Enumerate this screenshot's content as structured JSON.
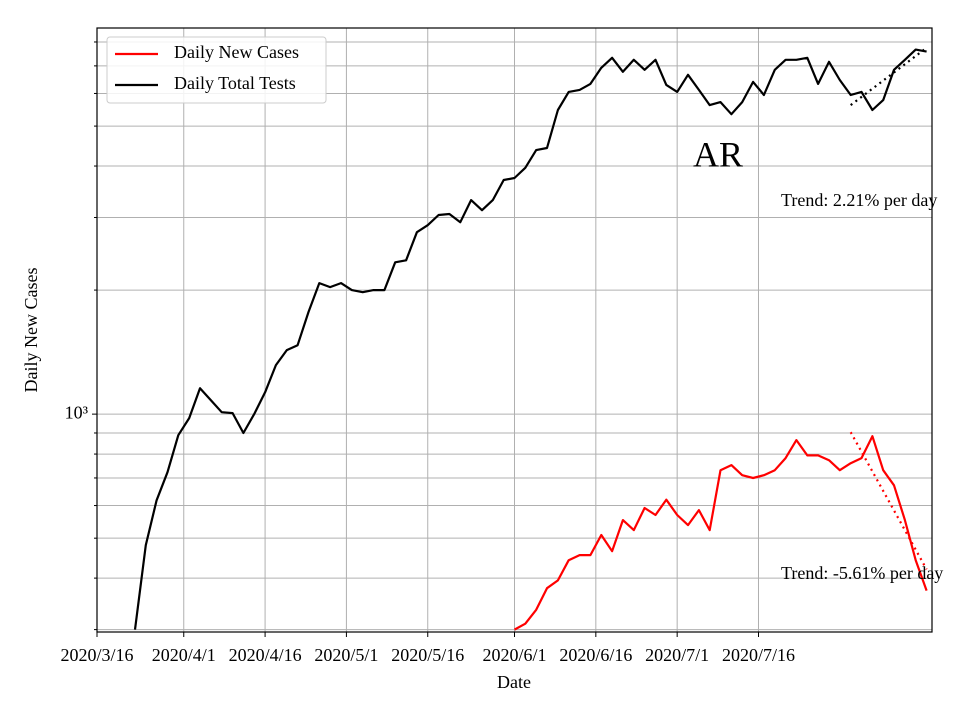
{
  "chart_data": {
    "type": "line",
    "log_y": true,
    "grid": true,
    "legend": "upper left",
    "ylabel": "Daily New Cases",
    "xlabel": "Date",
    "annotation": "AR",
    "xlim": [
      "2020/3/16",
      "2020/8/17"
    ],
    "xticks": [
      "2020/3/16",
      "2020/4/1",
      "2020/4/16",
      "2020/5/1",
      "2020/5/16",
      "2020/6/1",
      "2020/6/16",
      "2020/7/1",
      "2020/7/16"
    ],
    "ylim": [
      296,
      8650
    ],
    "yticks": [
      {
        "value": 1000,
        "label": "10³"
      }
    ],
    "yminorticks": [
      300,
      400,
      500,
      600,
      700,
      800,
      900,
      2000,
      3000,
      4000,
      5000,
      6000,
      7000,
      8000
    ],
    "x": [
      "2020/3/23",
      "2020/3/25",
      "2020/3/27",
      "2020/3/29",
      "2020/3/31",
      "2020/4/2",
      "2020/4/4",
      "2020/4/6",
      "2020/4/8",
      "2020/4/10",
      "2020/4/12",
      "2020/4/14",
      "2020/4/16",
      "2020/4/18",
      "2020/4/20",
      "2020/4/22",
      "2020/4/24",
      "2020/4/26",
      "2020/4/28",
      "2020/4/30",
      "2020/5/2",
      "2020/5/4",
      "2020/5/6",
      "2020/5/8",
      "2020/5/10",
      "2020/5/12",
      "2020/5/14",
      "2020/5/16",
      "2020/5/18",
      "2020/5/20",
      "2020/5/22",
      "2020/5/24",
      "2020/5/26",
      "2020/5/28",
      "2020/5/30",
      "2020/6/1",
      "2020/6/3",
      "2020/6/5",
      "2020/6/7",
      "2020/6/9",
      "2020/6/11",
      "2020/6/13",
      "2020/6/15",
      "2020/6/17",
      "2020/6/19",
      "2020/6/21",
      "2020/6/23",
      "2020/6/25",
      "2020/6/27",
      "2020/6/29",
      "2020/7/1",
      "2020/7/3",
      "2020/7/5",
      "2020/7/7",
      "2020/7/9",
      "2020/7/11",
      "2020/7/13",
      "2020/7/15",
      "2020/7/17",
      "2020/7/19",
      "2020/7/21",
      "2020/7/23",
      "2020/7/25",
      "2020/7/27",
      "2020/7/29",
      "2020/7/31",
      "2020/8/2",
      "2020/8/4",
      "2020/8/6",
      "2020/8/8",
      "2020/8/10",
      "2020/8/12",
      "2020/8/14",
      "2020/8/16"
    ],
    "series": [
      {
        "name": "Daily New Cases",
        "color": "#ff0000",
        "values": [
          null,
          null,
          null,
          null,
          null,
          null,
          null,
          null,
          null,
          null,
          null,
          null,
          null,
          null,
          null,
          null,
          null,
          null,
          null,
          null,
          null,
          null,
          null,
          null,
          null,
          null,
          null,
          null,
          null,
          null,
          null,
          null,
          null,
          null,
          null,
          300,
          310,
          335,
          378,
          395,
          442,
          455,
          455,
          509,
          465,
          553,
          523,
          592,
          569,
          620,
          569,
          538,
          585,
          523,
          731,
          752,
          711,
          700,
          711,
          731,
          782,
          865,
          794,
          794,
          773,
          731,
          760,
          782,
          884,
          731,
          672,
          553,
          442,
          373
        ]
      },
      {
        "name": "Daily Total Tests",
        "color": "#000000",
        "values": [
          300,
          481,
          618,
          723,
          889,
          978,
          1156,
          1081,
          1011,
          1006,
          900,
          1000,
          1130,
          1315,
          1430,
          1470,
          1769,
          2080,
          2034,
          2080,
          2000,
          1976,
          2000,
          2000,
          2336,
          2362,
          2763,
          2874,
          3042,
          3059,
          2922,
          3306,
          3126,
          3306,
          3700,
          3742,
          3960,
          4372,
          4423,
          5469,
          6052,
          6120,
          6331,
          6925,
          7325,
          6773,
          7243,
          6848,
          7243,
          6295,
          6052,
          6660,
          6120,
          5623,
          5717,
          5343,
          5717,
          6400,
          5950,
          6848,
          7243,
          7243,
          7325,
          6331,
          7162,
          6470,
          5950,
          6052,
          5469,
          5783,
          6848,
          7243,
          7665,
          7580
        ]
      }
    ],
    "trends": [
      {
        "color": "#000000",
        "x": [
          "2020/8/2",
          "2020/8/16"
        ],
        "values": [
          5623,
          7745
        ],
        "label": "Trend: 2.21% per day"
      },
      {
        "color": "#ff0000",
        "x": [
          "2020/8/2",
          "2020/8/16"
        ],
        "values": [
          904,
          420
        ],
        "label": "Trend: -5.61% per day"
      }
    ]
  }
}
